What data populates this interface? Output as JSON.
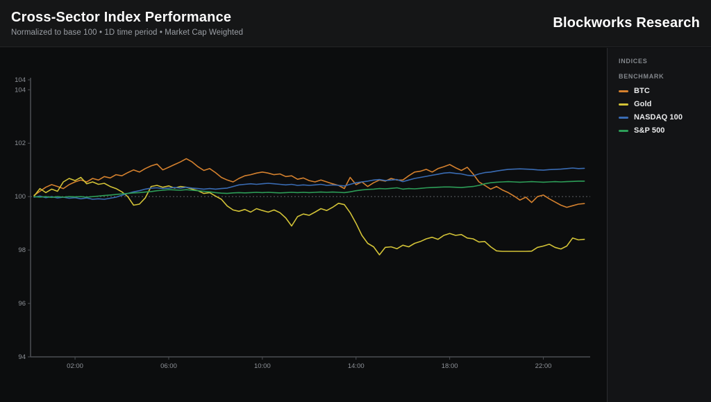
{
  "header": {
    "title": "Cross-Sector Index Performance",
    "subtitle": "Normalized to base 100 • 1D time period • Market Cap Weighted",
    "brand": "Blockworks Research"
  },
  "panel": {
    "section1": "INDICES",
    "section2": "BENCHMARK"
  },
  "colors": {
    "background": "#0c0d0e",
    "header_background": "#151617",
    "panel_background": "#131416",
    "axis_line": "#4c4f54",
    "tick_text": "#8f9399",
    "reference_line": "#83868c",
    "btc": "#d5812e",
    "gold": "#d3c337",
    "nasdaq": "#3a6cb4",
    "sp500": "#2d9e58"
  },
  "chart_data": {
    "type": "line",
    "title": "Cross-Sector Index Performance",
    "xlabel": "",
    "ylabel": "",
    "grid": false,
    "legend_position": "right-panel",
    "x_tick_labels": [
      "02:00",
      "06:00",
      "10:00",
      "14:00",
      "18:00",
      "22:00"
    ],
    "x_tick_hours": [
      2,
      6,
      10,
      14,
      18,
      22
    ],
    "y_ticks": [
      94,
      96,
      98,
      100,
      102,
      104
    ],
    "y_axis_extra_label": "104",
    "ylim": [
      94,
      104.45
    ],
    "xlim_hours": [
      0.1,
      24.0
    ],
    "x_start_hour": 0.25,
    "x_step_hours": 0.25,
    "reference_line": 100,
    "series": [
      {
        "name": "BTC",
        "color": "#d5812e",
        "values": [
          100.05,
          100.2,
          100.35,
          100.45,
          100.38,
          100.3,
          100.45,
          100.55,
          100.62,
          100.55,
          100.68,
          100.62,
          100.75,
          100.7,
          100.82,
          100.78,
          100.9,
          101.0,
          100.92,
          101.05,
          101.15,
          101.22,
          101.0,
          101.1,
          101.2,
          101.3,
          101.42,
          101.3,
          101.12,
          100.98,
          101.05,
          100.9,
          100.72,
          100.62,
          100.55,
          100.68,
          100.78,
          100.82,
          100.88,
          100.92,
          100.88,
          100.82,
          100.85,
          100.75,
          100.78,
          100.65,
          100.7,
          100.6,
          100.55,
          100.62,
          100.55,
          100.48,
          100.42,
          100.3,
          100.72,
          100.45,
          100.55,
          100.38,
          100.52,
          100.62,
          100.58,
          100.68,
          100.62,
          100.62,
          100.78,
          100.92,
          100.95,
          101.02,
          100.92,
          101.05,
          101.12,
          101.2,
          101.08,
          100.98,
          101.1,
          100.85,
          100.55,
          100.42,
          100.28,
          100.38,
          100.25,
          100.15,
          100.02,
          99.87,
          99.98,
          99.78,
          100.0,
          100.06,
          99.92,
          99.8,
          99.68,
          99.6,
          99.66,
          99.72,
          99.74
        ]
      },
      {
        "name": "Gold",
        "color": "#d3c337",
        "values": [
          100.02,
          100.3,
          100.15,
          100.28,
          100.2,
          100.55,
          100.68,
          100.6,
          100.72,
          100.48,
          100.55,
          100.46,
          100.5,
          100.38,
          100.3,
          100.18,
          100.0,
          99.68,
          99.72,
          99.95,
          100.38,
          100.42,
          100.35,
          100.4,
          100.32,
          100.38,
          100.35,
          100.28,
          100.22,
          100.12,
          100.15,
          100.02,
          99.9,
          99.65,
          99.5,
          99.45,
          99.52,
          99.42,
          99.55,
          99.48,
          99.42,
          99.5,
          99.4,
          99.2,
          98.9,
          99.25,
          99.35,
          99.3,
          99.42,
          99.55,
          99.48,
          99.6,
          99.75,
          99.7,
          99.4,
          99.0,
          98.55,
          98.25,
          98.12,
          97.82,
          98.1,
          98.12,
          98.05,
          98.18,
          98.12,
          98.25,
          98.32,
          98.42,
          98.48,
          98.4,
          98.55,
          98.62,
          98.55,
          98.58,
          98.45,
          98.42,
          98.3,
          98.32,
          98.12,
          97.97,
          97.95,
          97.95,
          97.95,
          97.95,
          97.95,
          97.96,
          98.1,
          98.15,
          98.22,
          98.1,
          98.04,
          98.15,
          98.45,
          98.38,
          98.4
        ]
      },
      {
        "name": "NASDAQ 100",
        "color": "#3a6cb4",
        "values": [
          99.98,
          100.02,
          99.96,
          100.0,
          99.95,
          99.98,
          99.94,
          99.96,
          99.92,
          99.95,
          99.9,
          99.92,
          99.9,
          99.94,
          99.98,
          100.05,
          100.12,
          100.18,
          100.22,
          100.28,
          100.32,
          100.33,
          100.3,
          100.32,
          100.34,
          100.32,
          100.35,
          100.32,
          100.3,
          100.28,
          100.3,
          100.28,
          100.3,
          100.32,
          100.38,
          100.44,
          100.46,
          100.48,
          100.46,
          100.48,
          100.5,
          100.48,
          100.46,
          100.44,
          100.46,
          100.42,
          100.44,
          100.42,
          100.44,
          100.46,
          100.42,
          100.44,
          100.42,
          100.4,
          100.46,
          100.52,
          100.55,
          100.58,
          100.62,
          100.64,
          100.6,
          100.62,
          100.64,
          100.56,
          100.62,
          100.68,
          100.72,
          100.76,
          100.8,
          100.84,
          100.88,
          100.9,
          100.87,
          100.85,
          100.8,
          100.78,
          100.85,
          100.9,
          100.92,
          100.96,
          100.99,
          101.02,
          101.03,
          101.04,
          101.03,
          101.02,
          101.0,
          100.99,
          101.01,
          101.02,
          101.03,
          101.05,
          101.07,
          101.05,
          101.06
        ]
      },
      {
        "name": "S&P 500",
        "color": "#2d9e58",
        "values": [
          100.0,
          99.98,
          100.0,
          99.97,
          100.0,
          99.98,
          100.0,
          99.99,
          100.0,
          99.98,
          100.0,
          100.02,
          100.04,
          100.06,
          100.08,
          100.1,
          100.12,
          100.14,
          100.15,
          100.17,
          100.19,
          100.22,
          100.24,
          100.26,
          100.25,
          100.24,
          100.26,
          100.24,
          100.22,
          100.2,
          100.18,
          100.15,
          100.13,
          100.12,
          100.14,
          100.15,
          100.14,
          100.15,
          100.16,
          100.15,
          100.16,
          100.15,
          100.14,
          100.15,
          100.16,
          100.15,
          100.16,
          100.15,
          100.16,
          100.17,
          100.16,
          100.17,
          100.16,
          100.15,
          100.18,
          100.22,
          100.25,
          100.27,
          100.28,
          100.3,
          100.29,
          100.31,
          100.33,
          100.28,
          100.3,
          100.29,
          100.31,
          100.33,
          100.34,
          100.35,
          100.36,
          100.36,
          100.35,
          100.34,
          100.36,
          100.38,
          100.42,
          100.48,
          100.52,
          100.54,
          100.55,
          100.56,
          100.55,
          100.54,
          100.55,
          100.56,
          100.55,
          100.54,
          100.55,
          100.56,
          100.55,
          100.56,
          100.57,
          100.58,
          100.58
        ]
      }
    ]
  }
}
